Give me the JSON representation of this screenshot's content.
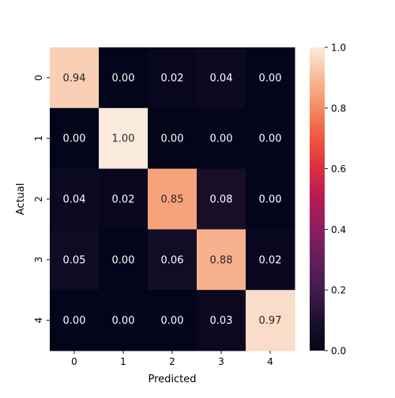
{
  "chart_data": {
    "type": "heatmap",
    "xlabel": "Predicted",
    "ylabel": "Actual",
    "x_categories": [
      "0",
      "1",
      "2",
      "3",
      "4"
    ],
    "y_categories": [
      "0",
      "1",
      "2",
      "3",
      "4"
    ],
    "values": [
      [
        0.94,
        0.0,
        0.02,
        0.04,
        0.0
      ],
      [
        0.0,
        1.0,
        0.0,
        0.0,
        0.0
      ],
      [
        0.04,
        0.02,
        0.85,
        0.08,
        0.0
      ],
      [
        0.05,
        0.0,
        0.06,
        0.88,
        0.02
      ],
      [
        0.0,
        0.0,
        0.0,
        0.03,
        0.97
      ]
    ],
    "value_format": "0.00",
    "colormap": "rocket",
    "vmin": 0.0,
    "vmax": 1.0,
    "colorbar_ticks": [
      "0.0",
      "0.2",
      "0.4",
      "0.6",
      "0.8",
      "1.0"
    ],
    "grid": false,
    "legend": "colorbar-right"
  }
}
